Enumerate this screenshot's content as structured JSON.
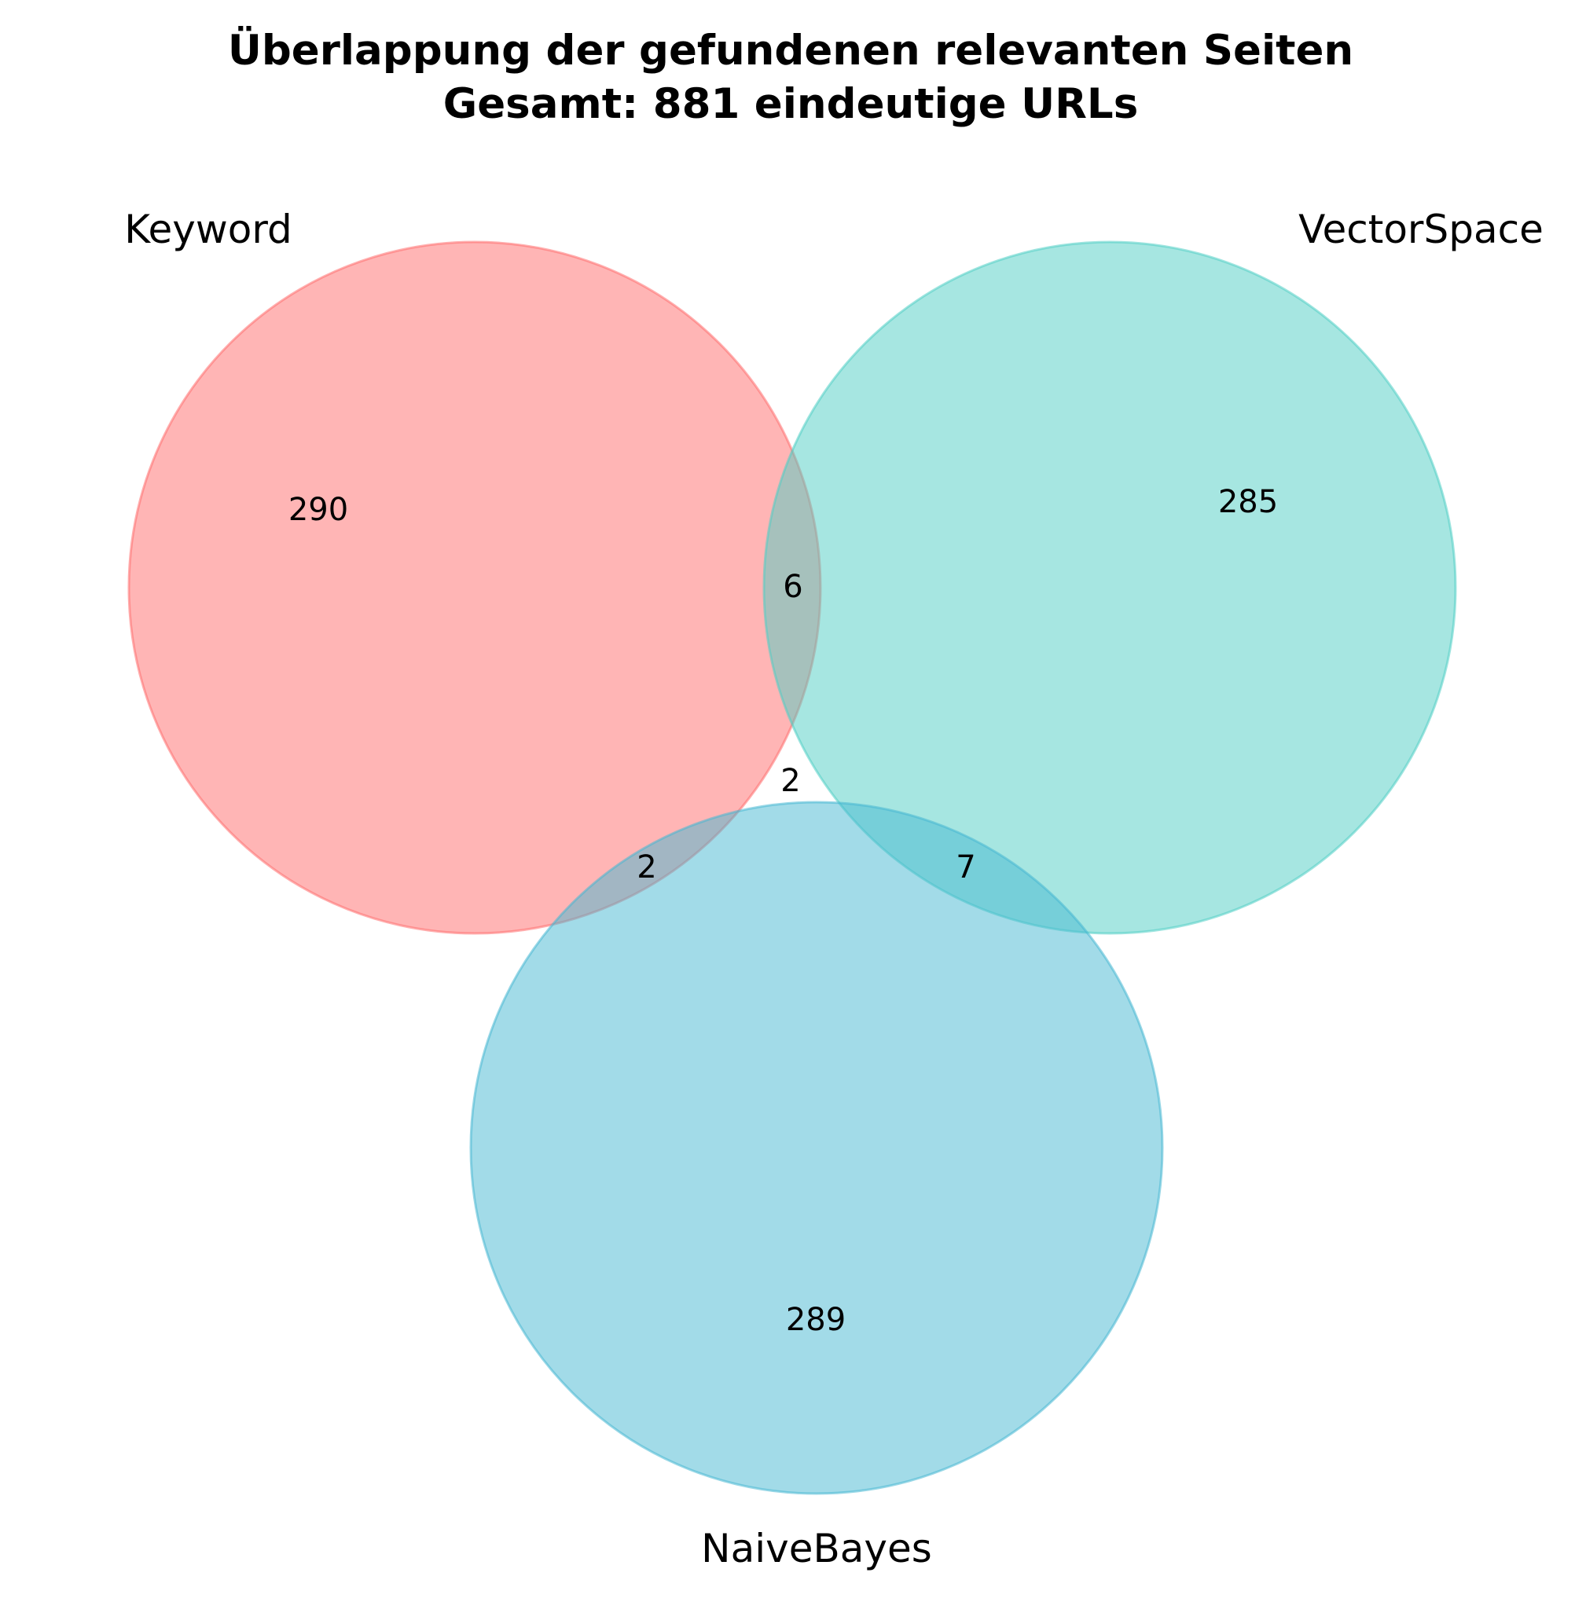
{
  "title": {
    "line1": "Überlappung der gefundenen relevanten Seiten",
    "line2": "Gesamt: 881 eindeutige URLs"
  },
  "sets": [
    {
      "name": "Keyword",
      "color": "#ff6b6b"
    },
    {
      "name": "VectorSpace",
      "color": "#4ecdc4"
    },
    {
      "name": "NaiveBayes",
      "color": "#45b7d1"
    }
  ],
  "chart_data": {
    "type": "venn3",
    "sets": [
      "Keyword",
      "VectorSpace",
      "NaiveBayes"
    ],
    "regions": {
      "keyword_only": 290,
      "vectorspace_only": 285,
      "naivebayes_only": 289,
      "keyword_vectorspace": 6,
      "keyword_naivebayes": 2,
      "vectorspace_naivebayes": 7,
      "all_three": 2
    },
    "total_unique": 881
  }
}
